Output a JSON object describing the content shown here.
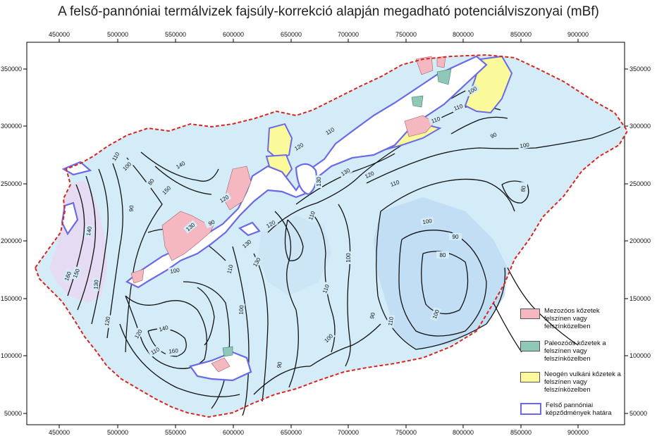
{
  "title": "A felső-pannóniai termálvizek fajsúly-korrekció alapján megadható potenciálviszonyai (mBf)",
  "axes": {
    "x_ticks": [
      "450000",
      "500000",
      "550000",
      "600000",
      "650000",
      "700000",
      "750000",
      "800000",
      "850000",
      "900000"
    ],
    "y_ticks": [
      "350000",
      "300000",
      "250000",
      "200000",
      "150000",
      "100000",
      "50000"
    ]
  },
  "colors": {
    "mesozoic": "#f5b8c0",
    "paleozoic": "#8fc7b8",
    "neogene_volcanic": "#fafa9a",
    "boundary": "#6a6ae6",
    "border": "#d8261e",
    "fill_low": "#c8e4f6",
    "fill_mid": "#d9eef9",
    "fill_high": "#e6def5"
  },
  "contour_labels": [
    "160",
    "150",
    "140",
    "130",
    "120",
    "110",
    "100",
    "90",
    "80",
    "150",
    "140",
    "130",
    "120",
    "110",
    "100",
    "90",
    "120",
    "130",
    "110",
    "100",
    "140",
    "150",
    "160",
    "130",
    "120",
    "110",
    "100",
    "90",
    "110",
    "100",
    "90",
    "130",
    "120",
    "110",
    "100",
    "110",
    "120",
    "130",
    "110",
    "100",
    "110",
    "100",
    "90",
    "80",
    "80",
    "90",
    "100",
    "110"
  ],
  "legend": {
    "items": [
      {
        "label": "Mezozóos kőzetek felszínen vagy felszínközelben"
      },
      {
        "label": "Paleozóos kőzetek a felszínen vagy felszínközelben"
      },
      {
        "label": "Neogén vulkáni kőzetek a felszínen vagy felszínközelben"
      },
      {
        "label": "Felső pannóniai képződmények határa"
      }
    ]
  }
}
